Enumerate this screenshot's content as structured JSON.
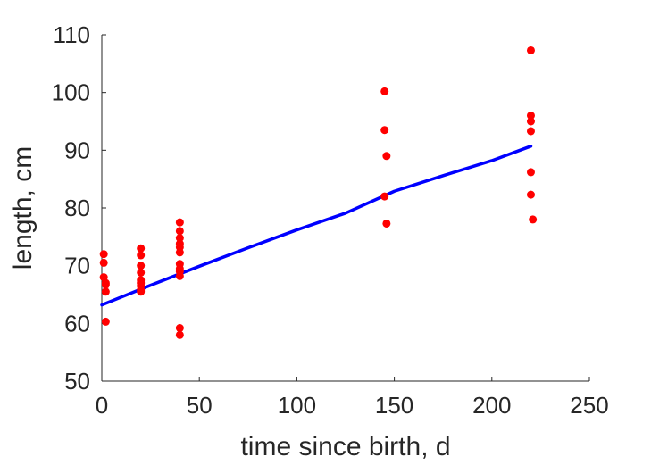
{
  "chart_data": {
    "type": "scatter",
    "title": "",
    "xlabel": "time since birth, d",
    "ylabel": "length, cm",
    "xlim": [
      0,
      250
    ],
    "ylim": [
      50,
      110
    ],
    "xticks": [
      0,
      50,
      100,
      150,
      200,
      250
    ],
    "yticks": [
      50,
      60,
      70,
      80,
      90,
      100,
      110
    ],
    "grid": false,
    "box": false,
    "series": [
      {
        "kind": "scatter",
        "color": "#ff0000",
        "points": [
          [
            1,
            72.0
          ],
          [
            1,
            70.5
          ],
          [
            1,
            68.0
          ],
          [
            2,
            67.0
          ],
          [
            2,
            66.7
          ],
          [
            2,
            65.5
          ],
          [
            2,
            60.3
          ],
          [
            20,
            73.0
          ],
          [
            20,
            71.8
          ],
          [
            20,
            70.0
          ],
          [
            20,
            68.8
          ],
          [
            20,
            67.5
          ],
          [
            20,
            67.0
          ],
          [
            20,
            66.5
          ],
          [
            20,
            65.8
          ],
          [
            20,
            65.5
          ],
          [
            40,
            77.5
          ],
          [
            40,
            76.0
          ],
          [
            40,
            74.8
          ],
          [
            40,
            73.8
          ],
          [
            40,
            73.2
          ],
          [
            40,
            72.3
          ],
          [
            40,
            70.3
          ],
          [
            40,
            69.5
          ],
          [
            40,
            69.0
          ],
          [
            40,
            68.2
          ],
          [
            40,
            59.2
          ],
          [
            40,
            58.0
          ],
          [
            145,
            100.2
          ],
          [
            145,
            93.5
          ],
          [
            146,
            89.0
          ],
          [
            145,
            82.0
          ],
          [
            146,
            77.3
          ],
          [
            220,
            107.3
          ],
          [
            220,
            96.0
          ],
          [
            220,
            95.0
          ],
          [
            220,
            93.3
          ],
          [
            220,
            86.2
          ],
          [
            220,
            82.3
          ],
          [
            221,
            78.0
          ]
        ]
      },
      {
        "kind": "line",
        "color": "#0000ff",
        "points": [
          [
            0,
            63.2
          ],
          [
            25,
            66.6
          ],
          [
            50,
            69.9
          ],
          [
            75,
            73.1
          ],
          [
            100,
            76.2
          ],
          [
            125,
            79.1
          ],
          [
            150,
            82.9
          ],
          [
            175,
            85.6
          ],
          [
            200,
            88.2
          ],
          [
            220,
            90.7
          ]
        ]
      }
    ]
  }
}
